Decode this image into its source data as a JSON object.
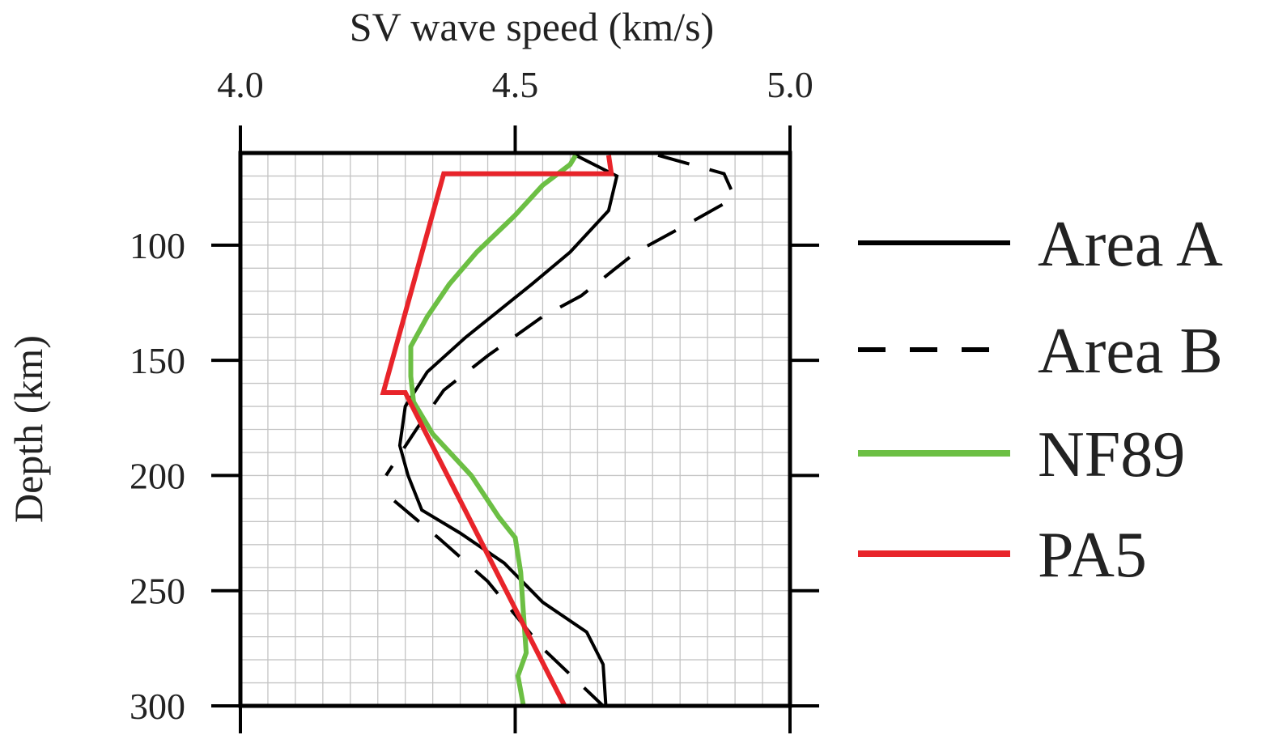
{
  "chart_data": {
    "type": "line",
    "xlabel": "SV wave speed (km/s)",
    "ylabel": "Depth (km)",
    "xlim": [
      4.0,
      5.0
    ],
    "ylim": [
      300,
      60
    ],
    "x_ticks": [
      "4.0",
      "4.5",
      "5.0"
    ],
    "y_ticks": [
      "100",
      "150",
      "200",
      "250",
      "300"
    ],
    "x_axis_position": "top",
    "y_axis_inverted": true,
    "grid": true,
    "legend_position": "right",
    "series": [
      {
        "name": "Area A",
        "color": "#000000",
        "style": "solid",
        "points": [
          [
            4.61,
            61
          ],
          [
            4.685,
            70
          ],
          [
            4.67,
            85
          ],
          [
            4.6,
            103
          ],
          [
            4.53,
            117
          ],
          [
            4.41,
            140
          ],
          [
            4.34,
            155
          ],
          [
            4.3,
            170
          ],
          [
            4.29,
            187
          ],
          [
            4.305,
            200
          ],
          [
            4.33,
            215
          ],
          [
            4.4,
            225
          ],
          [
            4.48,
            238
          ],
          [
            4.55,
            255
          ],
          [
            4.63,
            268
          ],
          [
            4.66,
            282
          ],
          [
            4.665,
            300
          ]
        ]
      },
      {
        "name": "Area B",
        "color": "#000000",
        "style": "dashed",
        "points": [
          [
            4.76,
            61
          ],
          [
            4.88,
            69
          ],
          [
            4.895,
            77
          ],
          [
            4.895,
            80
          ],
          [
            4.82,
            90
          ],
          [
            4.72,
            103
          ],
          [
            4.62,
            122
          ],
          [
            4.55,
            131
          ],
          [
            4.45,
            148
          ],
          [
            4.37,
            163
          ],
          [
            4.32,
            180
          ],
          [
            4.265,
            200
          ],
          null,
          [
            4.28,
            211
          ],
          [
            4.36,
            227
          ],
          [
            4.45,
            246
          ],
          [
            4.55,
            275
          ],
          [
            4.66,
            300
          ]
        ]
      },
      {
        "name": "NF89",
        "color": "#6cbf44",
        "style": "solid",
        "points": [
          [
            4.61,
            61
          ],
          [
            4.6,
            65
          ],
          [
            4.55,
            74
          ],
          [
            4.5,
            87
          ],
          [
            4.43,
            103
          ],
          [
            4.38,
            117
          ],
          [
            4.34,
            131
          ],
          [
            4.31,
            144
          ],
          [
            4.31,
            157
          ],
          [
            4.315,
            168
          ],
          [
            4.35,
            182
          ],
          [
            4.42,
            200
          ],
          [
            4.47,
            218
          ],
          [
            4.5,
            227
          ],
          [
            4.51,
            242
          ],
          [
            4.515,
            260
          ],
          [
            4.52,
            277
          ],
          [
            4.505,
            287
          ],
          [
            4.515,
            300
          ]
        ]
      },
      {
        "name": "PA5",
        "color": "#e8242a",
        "style": "solid",
        "points": [
          [
            4.67,
            61
          ],
          [
            4.675,
            69
          ],
          [
            4.37,
            69
          ],
          [
            4.26,
            164
          ],
          [
            4.3,
            164
          ],
          [
            4.59,
            300
          ]
        ]
      }
    ]
  },
  "legend": {
    "items": [
      {
        "label": "Area A",
        "color": "#000000",
        "style": "solid"
      },
      {
        "label": "Area B",
        "color": "#000000",
        "style": "dashed"
      },
      {
        "label": "NF89",
        "color": "#6cbf44",
        "style": "solid"
      },
      {
        "label": "PA5",
        "color": "#e8242a",
        "style": "solid"
      }
    ]
  }
}
